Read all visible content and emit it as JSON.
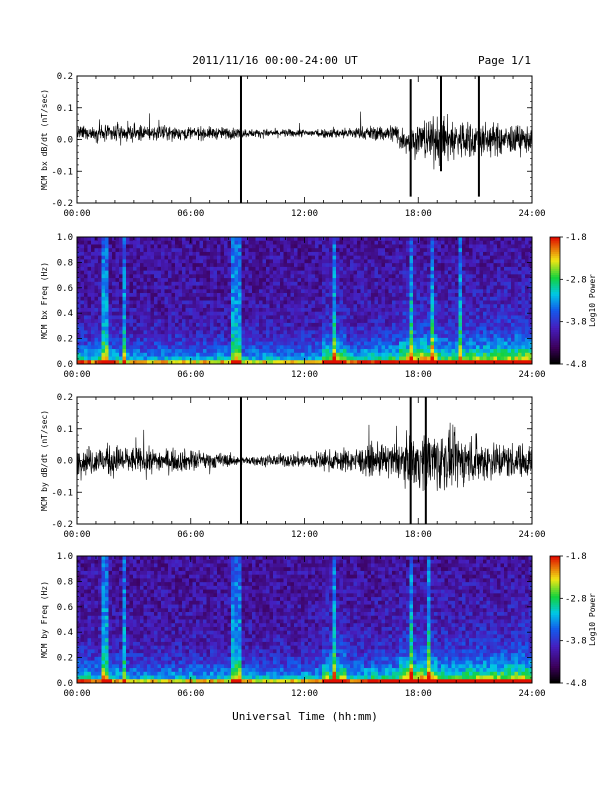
{
  "header": {
    "title": "2011/11/16  00:00-24:00 UT",
    "page": "Page 1/1"
  },
  "footer": {
    "xlabel": "Universal Time (hh:mm)"
  },
  "chart_data": [
    {
      "type": "line",
      "id": "bx-dbdt",
      "ylabel": "MCM bx dB/dt (nT/sec)",
      "xlim": [
        0,
        24
      ],
      "ylim": [
        -0.2,
        0.2
      ],
      "x_ticks": [
        "00:00",
        "06:00",
        "12:00",
        "18:00",
        "24:00"
      ],
      "y_ticks": [
        "-0.2",
        "-0.1",
        "0.0",
        "0.1",
        "0.2"
      ],
      "envelope": {
        "hours": [
          0,
          1.5,
          2,
          4,
          6,
          8,
          8.6,
          9,
          12,
          14,
          16,
          17,
          18,
          19,
          20,
          21,
          22,
          23,
          24
        ],
        "amplitude": [
          0.025,
          0.03,
          0.035,
          0.028,
          0.025,
          0.022,
          0.02,
          0.015,
          0.015,
          0.02,
          0.03,
          0.04,
          0.07,
          0.09,
          0.08,
          0.07,
          0.06,
          0.055,
          0.05
        ]
      },
      "spikes": [
        {
          "hour": 8.65,
          "min": -0.2,
          "max": 0.2
        },
        {
          "hour": 17.6,
          "min": -0.18,
          "max": 0.19
        },
        {
          "hour": 19.2,
          "min": -0.1,
          "max": 0.2
        },
        {
          "hour": 21.2,
          "min": -0.18,
          "max": 0.2
        }
      ]
    },
    {
      "type": "heatmap",
      "id": "bx-spectrogram",
      "ylabel": "MCM bx Freq (Hz)",
      "xlim": [
        0,
        24
      ],
      "ylim": [
        0,
        1.0
      ],
      "x_ticks": [
        "00:00",
        "06:00",
        "12:00",
        "18:00",
        "24:00"
      ],
      "y_ticks": [
        "0.0",
        "0.2",
        "0.4",
        "0.6",
        "0.8",
        "1.0"
      ],
      "colorbar": {
        "label": "Log10 Power",
        "range": [
          -4.8,
          -1.8
        ],
        "ticks": [
          "-1.8",
          "-2.8",
          "-3.8",
          "-4.8"
        ]
      },
      "bright_bands_hours": [
        1.5,
        2.5,
        8.3,
        8.6,
        13.6,
        17.6,
        18.8,
        20.2
      ]
    },
    {
      "type": "line",
      "id": "by-dbdt",
      "ylabel": "MCM by dB/dt (nT/sec)",
      "xlim": [
        0,
        24
      ],
      "ylim": [
        -0.2,
        0.2
      ],
      "x_ticks": [
        "00:00",
        "06:00",
        "12:00",
        "18:00",
        "24:00"
      ],
      "y_ticks": [
        "-0.2",
        "-0.1",
        "0.0",
        "0.1",
        "0.2"
      ],
      "envelope": {
        "hours": [
          0,
          1,
          2,
          3,
          4,
          6,
          8,
          8.6,
          9,
          11,
          13,
          15,
          16,
          17,
          18,
          19,
          20,
          21,
          22,
          23,
          24
        ],
        "amplitude": [
          0.05,
          0.055,
          0.06,
          0.05,
          0.045,
          0.04,
          0.025,
          0.015,
          0.015,
          0.025,
          0.035,
          0.05,
          0.06,
          0.07,
          0.1,
          0.12,
          0.1,
          0.085,
          0.075,
          0.065,
          0.06
        ]
      },
      "spikes": [
        {
          "hour": 8.65,
          "min": -0.2,
          "max": 0.2
        },
        {
          "hour": 17.6,
          "min": -0.2,
          "max": 0.2
        },
        {
          "hour": 18.4,
          "min": -0.2,
          "max": 0.2
        }
      ]
    },
    {
      "type": "heatmap",
      "id": "by-spectrogram",
      "ylabel": "MCM by Freq (Hz)",
      "xlim": [
        0,
        24
      ],
      "ylim": [
        0,
        1.0
      ],
      "x_ticks": [
        "00:00",
        "06:00",
        "12:00",
        "18:00",
        "24:00"
      ],
      "y_ticks": [
        "0.0",
        "0.2",
        "0.4",
        "0.6",
        "0.8",
        "1.0"
      ],
      "colorbar": {
        "label": "Log10 Power",
        "range": [
          -4.8,
          -1.8
        ],
        "ticks": [
          "-1.8",
          "-2.8",
          "-3.8",
          "-4.8"
        ]
      },
      "bright_bands_hours": [
        1.5,
        2.5,
        8.3,
        8.6,
        13.6,
        17.6,
        18.6
      ]
    }
  ]
}
